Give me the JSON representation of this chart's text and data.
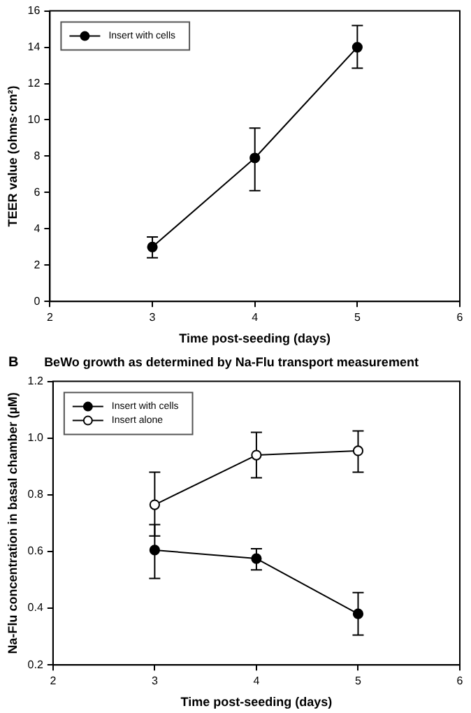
{
  "chart_data": [
    {
      "type": "line",
      "xlabel": "Time post-seeding (days)",
      "ylabel": "TEER value (ohms·cm²)",
      "x": [
        3,
        4,
        5
      ],
      "xlim": [
        2,
        6
      ],
      "xticks": [
        2,
        3,
        4,
        5,
        6
      ],
      "ylim": [
        0,
        16
      ],
      "yticks": [
        0,
        2,
        4,
        6,
        8,
        10,
        12,
        14,
        16
      ],
      "legend": "top left",
      "marker": "circle",
      "series": [
        {
          "name": "Insert with cells",
          "color": "#000000",
          "values": [
            3.0,
            7.9,
            14.0
          ],
          "errors": [
            [
              2.4,
              3.55
            ],
            [
              6.1,
              9.55
            ],
            [
              12.85,
              15.2
            ]
          ]
        }
      ]
    },
    {
      "type": "line",
      "title": "BeWo growth as determined by Na-Flu transport measurement",
      "annotations": [
        "B"
      ],
      "xlabel": "Time post-seeding (days)",
      "ylabel": "Na-Flu concentration in basal chamber (µM)",
      "x": [
        3,
        4,
        5
      ],
      "xlim": [
        2,
        6
      ],
      "xticks": [
        2,
        3,
        4,
        5,
        6
      ],
      "ylim": [
        0.2,
        1.2
      ],
      "yticks": [
        0.2,
        0.4,
        0.6,
        0.8,
        {
          "value": 1,
          "label": "1.0"
        },
        1.2
      ],
      "legend": "top left",
      "series": [
        {
          "name": "Insert with cells",
          "color": "#000000",
          "marker": "circle",
          "values": [
            0.605,
            0.575,
            0.38
          ],
          "errors": [
            [
              0.505,
              0.695
            ],
            [
              0.535,
              0.61
            ],
            [
              0.305,
              0.455
            ]
          ]
        },
        {
          "name": "Insert alone",
          "color": "#000000",
          "marker": "circle_open",
          "values": [
            0.765,
            0.94,
            0.955
          ],
          "errors": [
            [
              0.655,
              0.88
            ],
            [
              0.86,
              1.02
            ],
            [
              0.88,
              1.025
            ]
          ]
        }
      ]
    }
  ]
}
